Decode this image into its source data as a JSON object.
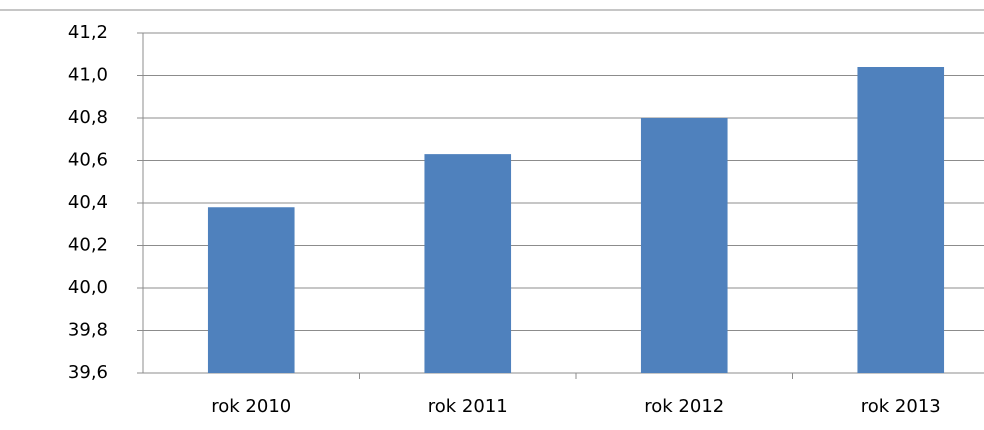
{
  "chart_data": {
    "type": "bar",
    "categories": [
      "rok 2010",
      "rok 2011",
      "rok 2012",
      "rok 2013"
    ],
    "values": [
      40.38,
      40.63,
      40.8,
      41.04
    ],
    "color": "#4f81bd",
    "ylim": [
      39.6,
      41.2
    ],
    "yticks": [
      {
        "value": 39.6,
        "label": "39,6"
      },
      {
        "value": 39.8,
        "label": "39,8"
      },
      {
        "value": 40.0,
        "label": "40,0"
      },
      {
        "value": 40.2,
        "label": "40,2"
      },
      {
        "value": 40.4,
        "label": "40,4"
      },
      {
        "value": 40.6,
        "label": "40,6"
      },
      {
        "value": 40.8,
        "label": "40,8"
      },
      {
        "value": 41.0,
        "label": "41,0"
      },
      {
        "value": 41.2,
        "label": "41,2"
      }
    ],
    "grid": true
  }
}
